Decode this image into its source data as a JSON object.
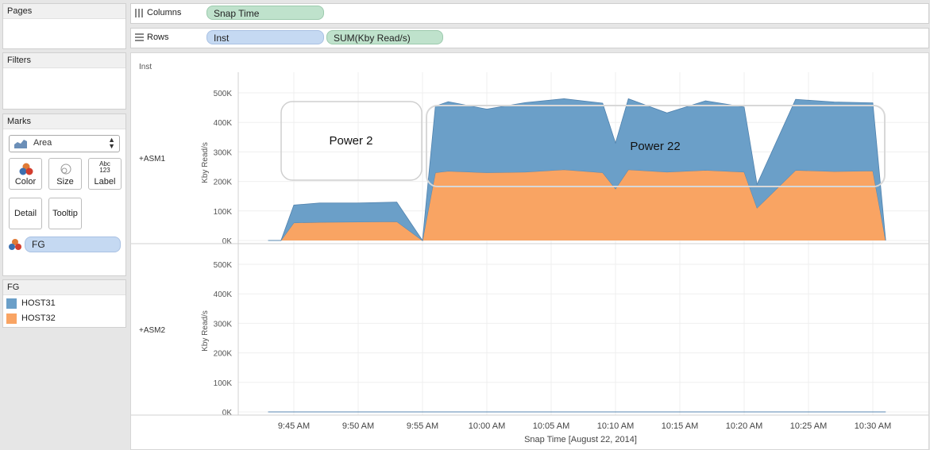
{
  "cards": {
    "pages_title": "Pages",
    "filters_title": "Filters",
    "marks_title": "Marks",
    "mark_type": "Area",
    "mark_buttons": {
      "color": "Color",
      "size": "Size",
      "label": "Label",
      "detail": "Detail",
      "tooltip": "Tooltip"
    },
    "label_icon_text": [
      "Abc",
      "123"
    ],
    "color_field": "FG",
    "legend_title": "FG",
    "legend_items": [
      {
        "label": "HOST31",
        "color": "#6b9fc8"
      },
      {
        "label": "HOST32",
        "color": "#f9a463"
      }
    ]
  },
  "shelves": {
    "columns_label": "Columns",
    "columns_pill": "Snap Time",
    "rows_label": "Rows",
    "rows_pills": [
      "Inst",
      "SUM(Kby Read/s)"
    ]
  },
  "view": {
    "row_header": "Inst",
    "panes": [
      {
        "label": "+ASM1",
        "y_title": "Kby Read/s"
      },
      {
        "label": "+ASM2",
        "y_title": "Kby Read/s"
      }
    ],
    "annotations": [
      "Power 2",
      "Power 22"
    ]
  },
  "chart_data": {
    "type": "area",
    "xlabel": "Snap Time [August 22, 2014]",
    "ylabel": "Kby Read/s",
    "x_ticks": [
      "9:45 AM",
      "9:50 AM",
      "9:55 AM",
      "10:00 AM",
      "10:05 AM",
      "10:10 AM",
      "10:15 AM",
      "10:20 AM",
      "10:25 AM",
      "10:30 AM"
    ],
    "y_ticks": [
      "0K",
      "100K",
      "200K",
      "300K",
      "400K",
      "500K"
    ],
    "ylim": [
      0,
      500000
    ],
    "stacked": true,
    "series_panes": [
      {
        "pane": "+ASM1",
        "series": [
          {
            "name": "HOST32",
            "color": "#f9a463",
            "x": [
              "9:43 AM",
              "9:44 AM",
              "9:45 AM",
              "9:47 AM",
              "9:50 AM",
              "9:53 AM",
              "9:55 AM",
              "9:56 AM",
              "9:57 AM",
              "10:00 AM",
              "10:03 AM",
              "10:06 AM",
              "10:09 AM",
              "10:10 AM",
              "10:11 AM",
              "10:14 AM",
              "10:17 AM",
              "10:20 AM",
              "10:21 AM",
              "10:24 AM",
              "10:27 AM",
              "10:30 AM",
              "10:31 AM"
            ],
            "values": [
              0,
              0,
              60000,
              62000,
              63000,
              64000,
              0,
              230000,
              235000,
              230000,
              232000,
              240000,
              230000,
              175000,
              240000,
              232000,
              238000,
              232000,
              110000,
              238000,
              234000,
              236000,
              0
            ]
          },
          {
            "name": "HOST31",
            "color": "#6b9fc8",
            "x": [
              "9:43 AM",
              "9:44 AM",
              "9:45 AM",
              "9:47 AM",
              "9:50 AM",
              "9:53 AM",
              "9:55 AM",
              "9:56 AM",
              "9:57 AM",
              "10:00 AM",
              "10:03 AM",
              "10:06 AM",
              "10:09 AM",
              "10:10 AM",
              "10:11 AM",
              "10:14 AM",
              "10:17 AM",
              "10:20 AM",
              "10:21 AM",
              "10:24 AM",
              "10:27 AM",
              "10:30 AM",
              "10:31 AM"
            ],
            "values": [
              0,
              0,
              60000,
              65000,
              64000,
              66000,
              0,
              225000,
              235000,
              215000,
              235000,
              240000,
              235000,
              155000,
              240000,
              200000,
              235000,
              220000,
              80000,
              240000,
              235000,
              230000,
              0
            ]
          }
        ]
      },
      {
        "pane": "+ASM2",
        "series": [
          {
            "name": "HOST32",
            "color": "#f9a463",
            "x": [
              "9:43 AM",
              "10:31 AM"
            ],
            "values": [
              0,
              0
            ]
          },
          {
            "name": "HOST31",
            "color": "#6b9fc8",
            "x": [
              "9:43 AM",
              "10:31 AM"
            ],
            "values": [
              0,
              0
            ]
          }
        ]
      }
    ]
  }
}
